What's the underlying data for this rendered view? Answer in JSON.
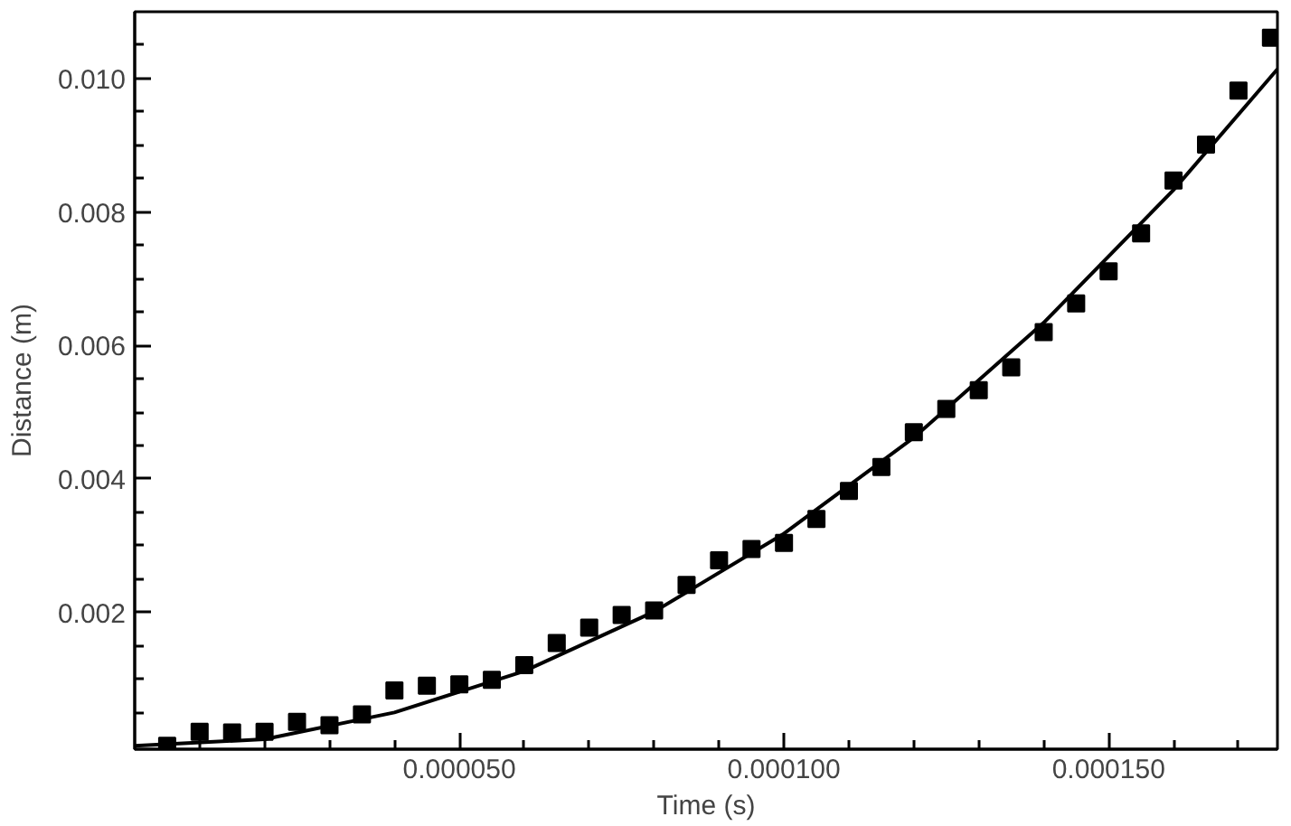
{
  "chart_data": {
    "type": "scatter",
    "xlabel": "Time (s)",
    "ylabel": "Distance (m)",
    "grid": false,
    "xlim": [
      0,
      0.000176
    ],
    "ylim": [
      -5e-05,
      0.011
    ],
    "xticks": [
      {
        "value": 1e-05,
        "label": null
      },
      {
        "value": 2e-05,
        "label": null
      },
      {
        "value": 3e-05,
        "label": null
      },
      {
        "value": 4e-05,
        "label": null
      },
      {
        "value": 5e-05,
        "label": "0.000050"
      },
      {
        "value": 6e-05,
        "label": null
      },
      {
        "value": 7e-05,
        "label": null
      },
      {
        "value": 8e-05,
        "label": null
      },
      {
        "value": 9e-05,
        "label": null
      },
      {
        "value": 0.0001,
        "label": "0.000100"
      },
      {
        "value": 0.00011,
        "label": null
      },
      {
        "value": 0.00012,
        "label": null
      },
      {
        "value": 0.00013,
        "label": null
      },
      {
        "value": 0.00014,
        "label": null
      },
      {
        "value": 0.00015,
        "label": "0.000150"
      },
      {
        "value": 0.00016,
        "label": null
      },
      {
        "value": 0.00017,
        "label": null
      }
    ],
    "yticks": [
      {
        "value": 0.0005,
        "label": null
      },
      {
        "value": 0.001,
        "label": null
      },
      {
        "value": 0.0015,
        "label": null
      },
      {
        "value": 0.002,
        "label": "0.002"
      },
      {
        "value": 0.0025,
        "label": null
      },
      {
        "value": 0.003,
        "label": null
      },
      {
        "value": 0.0035,
        "label": null
      },
      {
        "value": 0.004,
        "label": "0.004"
      },
      {
        "value": 0.0045,
        "label": null
      },
      {
        "value": 0.005,
        "label": null
      },
      {
        "value": 0.0055,
        "label": null
      },
      {
        "value": 0.006,
        "label": "0.006"
      },
      {
        "value": 0.0065,
        "label": null
      },
      {
        "value": 0.007,
        "label": null
      },
      {
        "value": 0.0075,
        "label": null
      },
      {
        "value": 0.008,
        "label": "0.008"
      },
      {
        "value": 0.0085,
        "label": null
      },
      {
        "value": 0.009,
        "label": null
      },
      {
        "value": 0.0095,
        "label": null
      },
      {
        "value": 0.01,
        "label": "0.010"
      },
      {
        "value": 0.0105,
        "label": null
      }
    ],
    "series": [
      {
        "marker": "square",
        "color": "#000000",
        "x": [
          5e-06,
          1e-05,
          1.5e-05,
          2e-05,
          2.5e-05,
          3e-05,
          3.5e-05,
          4e-05,
          4.5e-05,
          5e-05,
          5.5e-05,
          6e-05,
          6.5e-05,
          7e-05,
          7.5e-05,
          8e-05,
          8.5e-05,
          9e-05,
          9.5e-05,
          0.0001,
          0.000105,
          0.00011,
          0.000115,
          0.00012,
          0.000125,
          0.00013,
          0.000135,
          0.00014,
          0.000145,
          0.00015,
          0.000155,
          0.00016,
          0.000165,
          0.00017,
          0.000175
        ],
        "values": [
          0,
          0.00021,
          0.0002,
          0.00021,
          0.00036,
          0.00031,
          0.00047,
          0.00083,
          0.0009,
          0.00092,
          0.00099,
          0.00121,
          0.00154,
          0.00177,
          0.00196,
          0.00203,
          0.00241,
          0.00278,
          0.00295,
          0.00304,
          0.0034,
          0.00382,
          0.00418,
          0.0047,
          0.00505,
          0.00533,
          0.00567,
          0.0062,
          0.00663,
          0.00711,
          0.00768,
          0.00847,
          0.00901,
          0.00982,
          0.01061
        ]
      },
      {
        "type": "line",
        "marker": "none",
        "color": "#000000",
        "x": [
          0,
          2e-05,
          4e-05,
          6e-05,
          8e-05,
          0.0001,
          0.00012,
          0.00014,
          0.00016,
          0.000176
        ],
        "values": [
          0,
          0.0001,
          0.0005,
          0.00112,
          0.00201,
          0.00318,
          0.00462,
          0.00634,
          0.00833,
          0.01014
        ]
      }
    ]
  }
}
